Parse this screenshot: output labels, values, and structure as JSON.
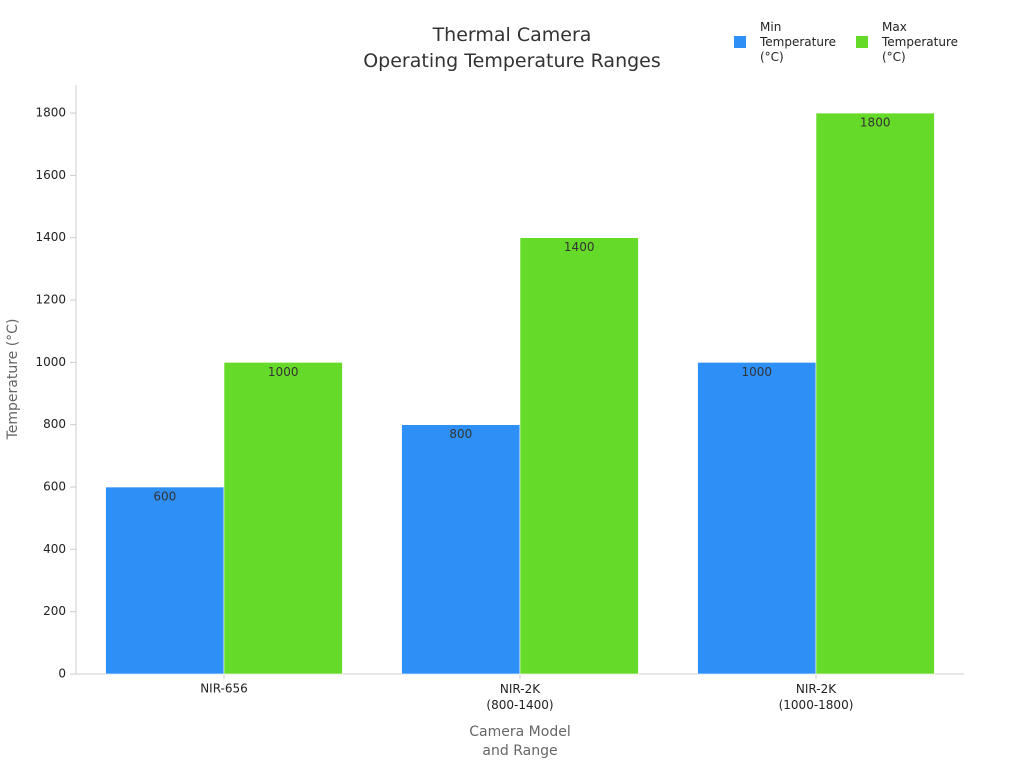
{
  "chart_data": {
    "type": "bar",
    "title": "Thermal Camera\nOperating Temperature Ranges",
    "categories": [
      "NIR-656",
      "NIR-2K\n(800-1400)",
      "NIR-2K\n(1000-1800)"
    ],
    "series": [
      {
        "name": "Min\nTemperature\n(°C)",
        "color": "#2e90f7",
        "values": [
          600,
          800,
          1000
        ]
      },
      {
        "name": "Max\nTemperature\n(°C)",
        "color": "#66da29",
        "values": [
          1000,
          1400,
          1800
        ]
      }
    ],
    "x_label": "Camera Model\nand Range",
    "y_label": "Temperature (°C)",
    "ylim": [
      0,
      1890
    ],
    "yticks": [
      0,
      200,
      400,
      600,
      800,
      1000,
      1200,
      1400,
      1600,
      1800
    ],
    "grid": false,
    "legend": "top-right"
  }
}
